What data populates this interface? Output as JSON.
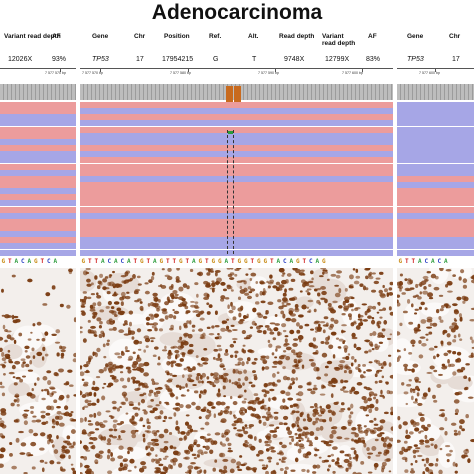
{
  "title": "Adenocarcinoma",
  "colors": {
    "forward_read": "#ec9c9c",
    "reverse_read": "#a6a6e6",
    "variant_base": "#c86a1e",
    "nuclei": "#7a3c12",
    "tissue_bg": "#f3efec"
  },
  "left_panel": {
    "headers": {
      "variant_read_depth": "Variant read depth",
      "af": "AF"
    },
    "values": {
      "variant_read_depth": "12026X",
      "af": "93%"
    },
    "ruler_label": "7 577 570 bp",
    "sequence": "GTACAGTCA",
    "reads": [
      "r",
      "r",
      "b",
      "b",
      "r",
      "r",
      "b",
      "r",
      "b",
      "b",
      "r",
      "b",
      "r",
      "r",
      "b",
      "r",
      "b",
      "r",
      "b",
      "r",
      "r",
      "b",
      "r",
      "b",
      "b"
    ]
  },
  "middle_panel": {
    "headers": {
      "gene": "Gene",
      "chr": "Chr",
      "position": "Position",
      "ref": "Ref.",
      "alt": "Alt.",
      "read_depth": "Read depth",
      "variant_read_depth": "Variant read depth",
      "af": "AF"
    },
    "values": {
      "gene": "TP53",
      "chr": "17",
      "position": "17954215",
      "ref": "G",
      "alt": "T",
      "read_depth": "9748X",
      "variant_read_depth": "12799X",
      "af": "83%"
    },
    "ruler_labels": [
      "7 577 570 bp",
      "7 577 580 bp",
      "7 577 590 bp",
      "7 577 600 bp"
    ],
    "sequence": "GTTACACATGTAGTTGTAGTGGATGGTGGTACAGTCAG",
    "reads": [
      "r",
      "b",
      "r",
      "b",
      "r",
      "b",
      "b",
      "r",
      "b",
      "r",
      "r",
      "r",
      "b",
      "r",
      "r",
      "r",
      "r",
      "r",
      "b",
      "r",
      "r",
      "r",
      "b",
      "b",
      "b"
    ]
  },
  "right_panel": {
    "headers": {
      "gene": "Gene",
      "chr": "Chr"
    },
    "values": {
      "gene": "TP53",
      "chr": "17"
    },
    "ruler_label": "7 577 600 bp",
    "sequence": "GTTACACA",
    "reads": [
      "b",
      "b",
      "b",
      "b",
      "b",
      "b",
      "b",
      "b",
      "b",
      "b",
      "b",
      "b",
      "r",
      "b",
      "r",
      "r",
      "r",
      "r",
      "b",
      "r",
      "r",
      "r",
      "b",
      "b",
      "b"
    ]
  }
}
